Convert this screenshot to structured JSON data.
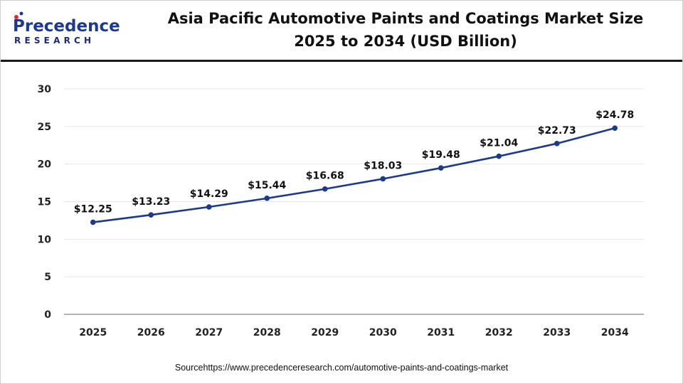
{
  "brand": {
    "logo_word": "Precedence",
    "logo_sub": "RESEARCH",
    "colors": {
      "logo_blue": "#1d3a8a",
      "logo_red": "#e0262e",
      "logo_text": "#222a6b"
    }
  },
  "title_line1": "Asia Pacific Automotive Paints and Coatings Market Size",
  "title_line2": "2025 to 2034 (USD Billion)",
  "source": "Sourcehttps://www.precedenceresearch.com/automotive-paints-and-coatings-market",
  "chart_data": {
    "type": "line",
    "title": "Asia Pacific Automotive Paints and Coatings Market Size 2025 to 2034 (USD Billion)",
    "xlabel": "",
    "ylabel": "",
    "categories": [
      "2025",
      "2026",
      "2027",
      "2028",
      "2029",
      "2030",
      "2031",
      "2032",
      "2033",
      "2034"
    ],
    "values": [
      12.25,
      13.23,
      14.29,
      15.44,
      16.68,
      18.03,
      19.48,
      21.04,
      22.73,
      24.78
    ],
    "data_labels": [
      "$12.25",
      "$13.23",
      "$14.29",
      "$15.44",
      "$16.68",
      "$18.03",
      "$19.48",
      "$21.04",
      "$22.73",
      "$24.78"
    ],
    "ylim": [
      0,
      30
    ],
    "yticks": [
      0,
      5,
      10,
      15,
      20,
      25,
      30
    ],
    "grid": true,
    "legend": "none",
    "colors": {
      "line": "#1d3a8a",
      "grid": "#e6e6e6",
      "axis": "#888888"
    }
  }
}
